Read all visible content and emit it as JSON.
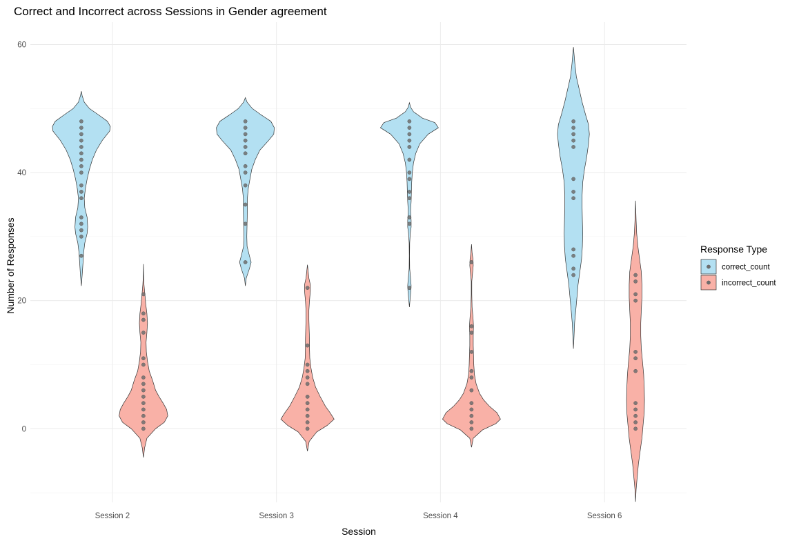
{
  "chart_data": {
    "type": "violin",
    "title": "Correct and Incorrect across Sessions in Gender agreement",
    "xlabel": "Session",
    "ylabel": "Number of Responses",
    "categories": [
      "Session 2",
      "Session 3",
      "Session 4",
      "Session 6"
    ],
    "ylim": [
      -11.5,
      63.5
    ],
    "yticks": [
      0,
      20,
      40,
      60
    ],
    "grid": true,
    "legend": {
      "title": "Response Type",
      "position": "right",
      "entries": [
        "correct_count",
        "incorrect_count"
      ]
    },
    "colors": {
      "correct_count": "#b3e0f2",
      "incorrect_count": "#f9b1a7",
      "outline": "#333333",
      "points": "#6e6e6e"
    },
    "series": [
      {
        "name": "correct_count",
        "violins": [
          {
            "category": "Session 2",
            "range": [
              22.3,
              52.7
            ],
            "density": [
              [
                22.3,
                0
              ],
              [
                24,
                0.03
              ],
              [
                26,
                0.06
              ],
              [
                27.5,
                0.08
              ],
              [
                29,
                0.12
              ],
              [
                30.5,
                0.2
              ],
              [
                31.5,
                0.22
              ],
              [
                33,
                0.2
              ],
              [
                34.5,
                0.12
              ],
              [
                36,
                0.1
              ],
              [
                37.5,
                0.14
              ],
              [
                39,
                0.2
              ],
              [
                40.5,
                0.28
              ],
              [
                42,
                0.38
              ],
              [
                43.5,
                0.52
              ],
              [
                45,
                0.72
              ],
              [
                46.5,
                0.98
              ],
              [
                47.2,
                1.0
              ],
              [
                48,
                0.9
              ],
              [
                49,
                0.6
              ],
              [
                50,
                0.28
              ],
              [
                51,
                0.1
              ],
              [
                52,
                0.03
              ],
              [
                52.7,
                0
              ]
            ],
            "points": [
              27,
              30,
              31,
              32,
              33,
              36,
              37,
              38,
              40,
              41,
              42,
              43,
              44,
              45,
              46,
              47,
              48
            ]
          },
          {
            "category": "Session 3",
            "range": [
              22.3,
              51.7
            ],
            "density": [
              [
                22.3,
                0
              ],
              [
                23.5,
                0.03
              ],
              [
                25,
                0.14
              ],
              [
                26,
                0.2
              ],
              [
                27,
                0.14
              ],
              [
                28.5,
                0.06
              ],
              [
                30,
                0.05
              ],
              [
                32,
                0.06
              ],
              [
                34,
                0.07
              ],
              [
                36,
                0.07
              ],
              [
                37.5,
                0.1
              ],
              [
                39,
                0.16
              ],
              [
                40.5,
                0.22
              ],
              [
                42,
                0.34
              ],
              [
                43.5,
                0.5
              ],
              [
                45,
                0.8
              ],
              [
                46,
                0.98
              ],
              [
                47,
                1.0
              ],
              [
                48,
                0.88
              ],
              [
                49,
                0.55
              ],
              [
                50,
                0.24
              ],
              [
                51,
                0.06
              ],
              [
                51.7,
                0
              ]
            ],
            "points": [
              26,
              32,
              35,
              38,
              40,
              41,
              43,
              44,
              45,
              46,
              47,
              48
            ]
          },
          {
            "category": "Session 4",
            "range": [
              19.0,
              50.9
            ],
            "density": [
              [
                19,
                0
              ],
              [
                20.5,
                0.03
              ],
              [
                21.5,
                0.05
              ],
              [
                22.3,
                0.06
              ],
              [
                23.5,
                0.04
              ],
              [
                25,
                0.01
              ],
              [
                27,
                0.005
              ],
              [
                29,
                0.01
              ],
              [
                30.5,
                0.03
              ],
              [
                31.5,
                0.06
              ],
              [
                32.5,
                0.06
              ],
              [
                34,
                0.04
              ],
              [
                35.5,
                0.06
              ],
              [
                37,
                0.07
              ],
              [
                38.5,
                0.08
              ],
              [
                40,
                0.1
              ],
              [
                41.5,
                0.14
              ],
              [
                43,
                0.22
              ],
              [
                44.5,
                0.36
              ],
              [
                46,
                0.65
              ],
              [
                47,
                1.0
              ],
              [
                47.8,
                0.88
              ],
              [
                48.5,
                0.45
              ],
              [
                49.5,
                0.14
              ],
              [
                50.2,
                0.04
              ],
              [
                50.9,
                0
              ]
            ],
            "points": [
              22,
              32,
              33,
              36,
              37,
              39,
              40,
              42,
              44,
              45,
              46,
              47,
              48
            ]
          },
          {
            "category": "Session 6",
            "range": [
              12.5,
              59.6
            ],
            "density": [
              [
                12.5,
                0
              ],
              [
                14.5,
                0.02
              ],
              [
                16.5,
                0.04
              ],
              [
                18.5,
                0.08
              ],
              [
                20.5,
                0.12
              ],
              [
                22.5,
                0.16
              ],
              [
                24.5,
                0.22
              ],
              [
                26.5,
                0.28
              ],
              [
                28.5,
                0.31
              ],
              [
                30.5,
                0.32
              ],
              [
                32.5,
                0.31
              ],
              [
                34.5,
                0.3
              ],
              [
                36.5,
                0.3
              ],
              [
                38.5,
                0.32
              ],
              [
                40.5,
                0.38
              ],
              [
                42.5,
                0.46
              ],
              [
                44.5,
                0.52
              ],
              [
                46,
                0.55
              ],
              [
                47.5,
                0.52
              ],
              [
                49,
                0.42
              ],
              [
                51,
                0.3
              ],
              [
                53,
                0.2
              ],
              [
                55,
                0.1
              ],
              [
                57,
                0.05
              ],
              [
                59.6,
                0
              ]
            ],
            "points": [
              24,
              25,
              27,
              28,
              36,
              37,
              39,
              44,
              45,
              46,
              47,
              48
            ]
          }
        ]
      },
      {
        "name": "incorrect_count",
        "violins": [
          {
            "category": "Session 2",
            "range": [
              -4.5,
              25.7
            ],
            "density": [
              [
                -4.5,
                0
              ],
              [
                -3,
                0.04
              ],
              [
                -1.5,
                0.12
              ],
              [
                0,
                0.42
              ],
              [
                1,
                0.72
              ],
              [
                2,
                0.84
              ],
              [
                3,
                0.8
              ],
              [
                4,
                0.68
              ],
              [
                5,
                0.54
              ],
              [
                6,
                0.42
              ],
              [
                7.5,
                0.32
              ],
              [
                9,
                0.2
              ],
              [
                10.5,
                0.14
              ],
              [
                12,
                0.1
              ],
              [
                13.5,
                0.09
              ],
              [
                15,
                0.12
              ],
              [
                16.5,
                0.14
              ],
              [
                18,
                0.12
              ],
              [
                19.5,
                0.08
              ],
              [
                21,
                0.05
              ],
              [
                22.5,
                0.02
              ],
              [
                23.5,
                0.01
              ],
              [
                25.7,
                0
              ]
            ],
            "points": [
              0,
              1,
              2,
              3,
              4,
              5,
              6,
              7,
              8,
              10,
              11,
              15,
              17,
              18,
              21
            ]
          },
          {
            "category": "Session 3",
            "range": [
              -3.5,
              25.6
            ],
            "density": [
              [
                -3.5,
                0
              ],
              [
                -2,
                0.06
              ],
              [
                -0.5,
                0.32
              ],
              [
                0.5,
                0.68
              ],
              [
                1.5,
                0.92
              ],
              [
                2.5,
                0.78
              ],
              [
                3.5,
                0.62
              ],
              [
                5,
                0.44
              ],
              [
                6.5,
                0.28
              ],
              [
                8,
                0.18
              ],
              [
                9.5,
                0.12
              ],
              [
                11,
                0.08
              ],
              [
                12.5,
                0.07
              ],
              [
                14,
                0.07
              ],
              [
                15.5,
                0.06
              ],
              [
                17,
                0.05
              ],
              [
                18.5,
                0.05
              ],
              [
                20,
                0.07
              ],
              [
                21.5,
                0.1
              ],
              [
                22.5,
                0.1
              ],
              [
                23.5,
                0.05
              ],
              [
                25.6,
                0
              ]
            ],
            "points": [
              0,
              1,
              2,
              3,
              4,
              5,
              7,
              8,
              9,
              10,
              13,
              22
            ]
          },
          {
            "category": "Session 4",
            "range": [
              -2.9,
              28.8
            ],
            "density": [
              [
                -2.9,
                0
              ],
              [
                -1.5,
                0.06
              ],
              [
                -0.2,
                0.38
              ],
              [
                0.8,
                0.84
              ],
              [
                1.5,
                1.0
              ],
              [
                2.5,
                0.88
              ],
              [
                3.5,
                0.62
              ],
              [
                4.5,
                0.42
              ],
              [
                5.5,
                0.28
              ],
              [
                7,
                0.16
              ],
              [
                8.5,
                0.1
              ],
              [
                10,
                0.08
              ],
              [
                11.5,
                0.07
              ],
              [
                13,
                0.06
              ],
              [
                14.5,
                0.06
              ],
              [
                16,
                0.07
              ],
              [
                17.5,
                0.05
              ],
              [
                19,
                0.02
              ],
              [
                21,
                0.01
              ],
              [
                23,
                0.01
              ],
              [
                24.5,
                0.04
              ],
              [
                25.5,
                0.06
              ],
              [
                26.5,
                0.05
              ],
              [
                27.5,
                0.02
              ],
              [
                28.8,
                0
              ]
            ],
            "points": [
              0,
              1,
              2,
              3,
              4,
              6,
              8,
              9,
              12,
              15,
              16,
              26
            ]
          },
          {
            "category": "Session 6",
            "range": [
              -11.4,
              35.6
            ],
            "density": [
              [
                -11.4,
                0
              ],
              [
                -9.5,
                0.02
              ],
              [
                -7.5,
                0.06
              ],
              [
                -5.5,
                0.1
              ],
              [
                -3.5,
                0.16
              ],
              [
                -1.5,
                0.22
              ],
              [
                0.5,
                0.26
              ],
              [
                2.5,
                0.3
              ],
              [
                4.5,
                0.31
              ],
              [
                6.5,
                0.3
              ],
              [
                8.5,
                0.28
              ],
              [
                10.5,
                0.24
              ],
              [
                12.5,
                0.2
              ],
              [
                14.5,
                0.18
              ],
              [
                16.5,
                0.18
              ],
              [
                18.5,
                0.2
              ],
              [
                20.5,
                0.22
              ],
              [
                22.5,
                0.22
              ],
              [
                24.5,
                0.2
              ],
              [
                26.5,
                0.14
              ],
              [
                28.5,
                0.08
              ],
              [
                30.5,
                0.04
              ],
              [
                32.5,
                0.02
              ],
              [
                35.6,
                0
              ]
            ],
            "points": [
              0,
              1,
              2,
              3,
              4,
              9,
              11,
              12,
              20,
              21,
              23,
              24
            ]
          }
        ]
      }
    ]
  }
}
